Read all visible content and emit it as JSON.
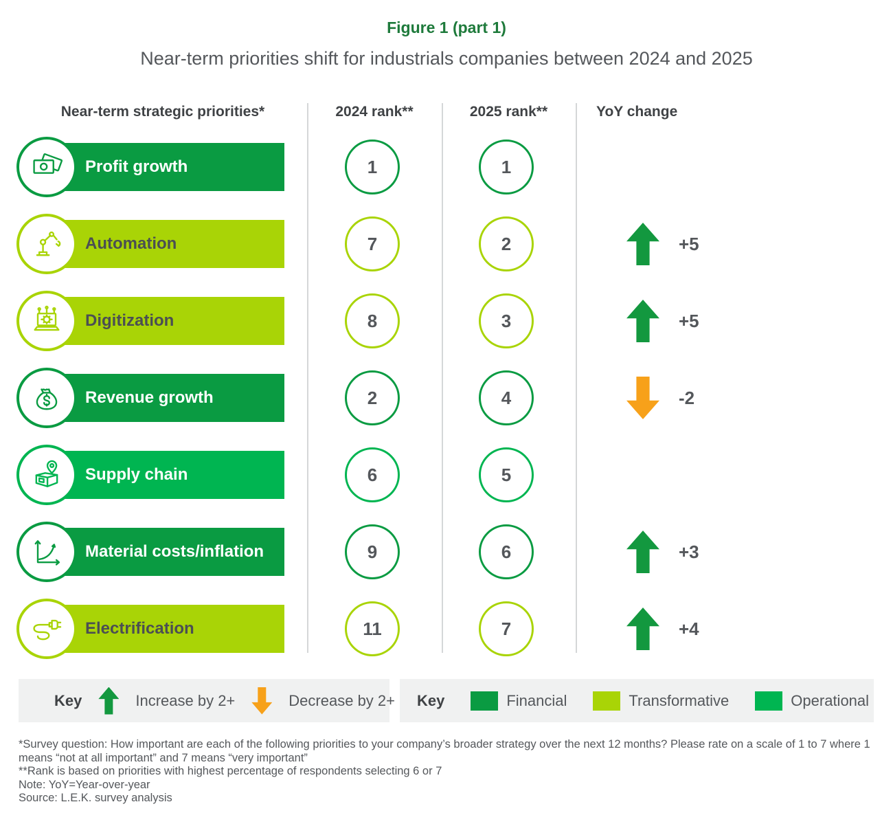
{
  "figure": {
    "title": "Figure 1 (part 1)",
    "subtitle": "Near-term priorities shift for industrials companies between 2024 and 2025"
  },
  "columns": [
    "Near-term strategic priorities*",
    "2024 rank**",
    "2025 rank**",
    "YoY change"
  ],
  "colors": {
    "financial": "#0a9b42",
    "transformative": "#a9d406",
    "operational": "#00b551",
    "increase_arrow": "#13983f",
    "decrease_arrow": "#f7a11a",
    "title_green": "#1e7a3b"
  },
  "rows": [
    {
      "label": "Profit growth",
      "icon": "banknotes-icon",
      "category": "financial",
      "rank_2024": "1",
      "rank_2025": "1",
      "change": null,
      "direction": null
    },
    {
      "label": "Automation",
      "icon": "robot-arm-icon",
      "category": "transformative",
      "rank_2024": "7",
      "rank_2025": "2",
      "change": "+5",
      "direction": "up"
    },
    {
      "label": "Digitization",
      "icon": "laptop-gear-icon",
      "category": "transformative",
      "rank_2024": "8",
      "rank_2025": "3",
      "change": "+5",
      "direction": "up"
    },
    {
      "label": "Revenue growth",
      "icon": "money-bag-icon",
      "category": "financial",
      "rank_2024": "2",
      "rank_2025": "4",
      "change": "-2",
      "direction": "down"
    },
    {
      "label": "Supply chain",
      "icon": "package-pin-icon",
      "category": "operational",
      "rank_2024": "6",
      "rank_2025": "5",
      "change": null,
      "direction": null
    },
    {
      "label": "Material costs/inflation",
      "icon": "rising-curve-icon",
      "category": "financial",
      "rank_2024": "9",
      "rank_2025": "6",
      "change": "+3",
      "direction": "up"
    },
    {
      "label": "Electrification",
      "icon": "plug-icon",
      "category": "transformative",
      "rank_2024": "11",
      "rank_2025": "7",
      "change": "+4",
      "direction": "up"
    }
  ],
  "key_arrows": {
    "label": "Key",
    "increase": "Increase by 2+",
    "decrease": "Decrease by 2+"
  },
  "key_categories": {
    "label": "Key",
    "items": [
      {
        "name": "Financial",
        "category": "financial"
      },
      {
        "name": "Transformative",
        "category": "transformative"
      },
      {
        "name": "Operational",
        "category": "operational"
      }
    ]
  },
  "footnotes": [
    "*Survey question: How important are each of the following priorities to your company’s broader strategy over the next 12 months? Please rate on a scale of 1 to 7 where 1 means “not at all important” and 7 means “very important”",
    "**Rank is based on priorities with highest percentage of respondents selecting 6 or 7",
    "Note: YoY=Year-over-year",
    "Source: L.E.K. survey analysis"
  ],
  "chart_data": {
    "type": "table",
    "title": "Figure 1 (part 1)",
    "subtitle": "Near-term priorities shift for industrials companies between 2024 and 2025",
    "columns": [
      "Near-term strategic priorities*",
      "2024 rank**",
      "2025 rank**",
      "YoY change"
    ],
    "categories": [
      "Profit growth",
      "Automation",
      "Digitization",
      "Revenue growth",
      "Supply chain",
      "Material costs/inflation",
      "Electrification"
    ],
    "series": [
      {
        "name": "2024 rank",
        "values": [
          1,
          7,
          8,
          2,
          6,
          9,
          11
        ]
      },
      {
        "name": "2025 rank",
        "values": [
          1,
          2,
          3,
          4,
          5,
          6,
          7
        ]
      },
      {
        "name": "YoY change",
        "values": [
          0,
          5,
          5,
          -2,
          0,
          3,
          4
        ]
      }
    ],
    "category_types": [
      "Financial",
      "Transformative",
      "Transformative",
      "Financial",
      "Operational",
      "Financial",
      "Transformative"
    ],
    "legend": {
      "Financial": "#0a9b42",
      "Transformative": "#a9d406",
      "Operational": "#00b551"
    },
    "notes": "Up arrow = increase by 2+, down arrow = decrease by 2+"
  }
}
